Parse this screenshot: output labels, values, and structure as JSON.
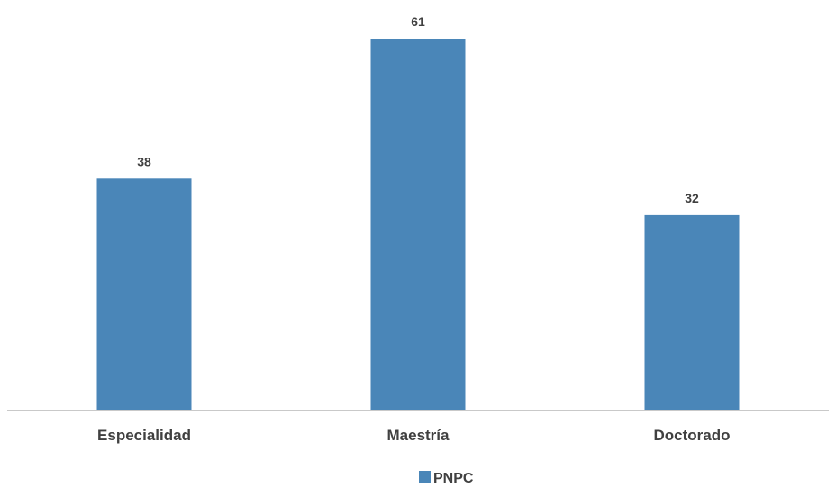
{
  "chart_data": {
    "type": "bar",
    "categories": [
      "Especialidad",
      "Maestría",
      "Doctorado"
    ],
    "series": [
      {
        "name": "PNPC",
        "values": [
          38,
          61,
          32
        ]
      }
    ],
    "ylim": [
      0,
      61
    ],
    "grid": false,
    "legend": "bottom-center",
    "colors": {
      "bar": "#4a86b8",
      "axis": "#c9c9c9",
      "text": "#404040"
    }
  }
}
